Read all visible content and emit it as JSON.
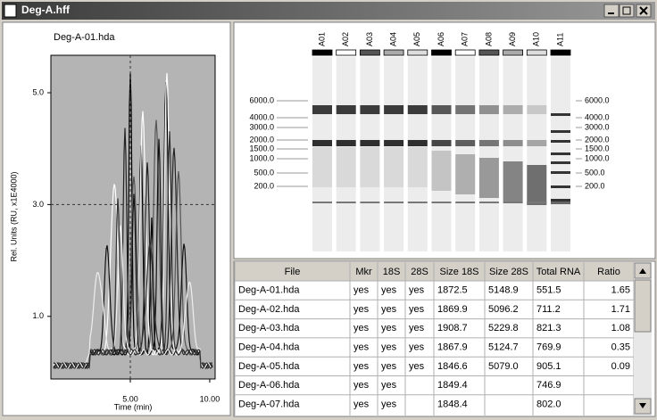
{
  "window": {
    "title": "Deg-A.hff"
  },
  "electropherogram": {
    "title": "Deg-A-01.hda",
    "xlabel": "Time (min)",
    "ylabel": "Rel. Units (RU, x1E4000)",
    "xlim": [
      0,
      10.34
    ],
    "ylim": [
      -0.12,
      5.67
    ],
    "xticks": [
      {
        "value": 5,
        "label": "5.00"
      },
      {
        "value": 10,
        "label": "10.00"
      }
    ],
    "yticks": [
      {
        "value": 1,
        "label": "1.0"
      },
      {
        "value": 3,
        "label": "3.0"
      },
      {
        "value": 5,
        "label": "5.0"
      }
    ]
  },
  "gel": {
    "lanes": [
      "A01",
      "A02",
      "A03",
      "A04",
      "A05",
      "A06",
      "A07",
      "A08",
      "A09",
      "A10",
      "A11"
    ],
    "ladder": [
      "6000.0",
      "4000.0",
      "3000.0",
      "2000.0",
      "1500.0",
      "1000.0",
      "500.0",
      "200.0"
    ]
  },
  "table": {
    "columns": [
      "File",
      "Mkr",
      "18S",
      "28S",
      "Size 18S",
      "Size 28S",
      "Total RNA",
      "Ratio"
    ],
    "rows": [
      [
        "Deg-A-01.hda",
        "yes",
        "yes",
        "yes",
        1872.5,
        5148.9,
        551.5,
        1.65
      ],
      [
        "Deg-A-02.hda",
        "yes",
        "yes",
        "yes",
        1869.9,
        5096.2,
        711.2,
        1.71
      ],
      [
        "Deg-A-03.hda",
        "yes",
        "yes",
        "yes",
        1908.7,
        5229.8,
        821.3,
        1.08
      ],
      [
        "Deg-A-04.hda",
        "yes",
        "yes",
        "yes",
        1867.9,
        5124.7,
        769.9,
        0.35
      ],
      [
        "Deg-A-05.hda",
        "yes",
        "yes",
        "yes",
        1846.6,
        "5079.0",
        905.1,
        0.09
      ],
      [
        "Deg-A-06.hda",
        "yes",
        "yes",
        null,
        1849.4,
        null,
        746.9,
        null
      ],
      [
        "Deg-A-07.hda",
        "yes",
        "yes",
        null,
        1848.4,
        null,
        "802.0",
        null
      ]
    ]
  }
}
